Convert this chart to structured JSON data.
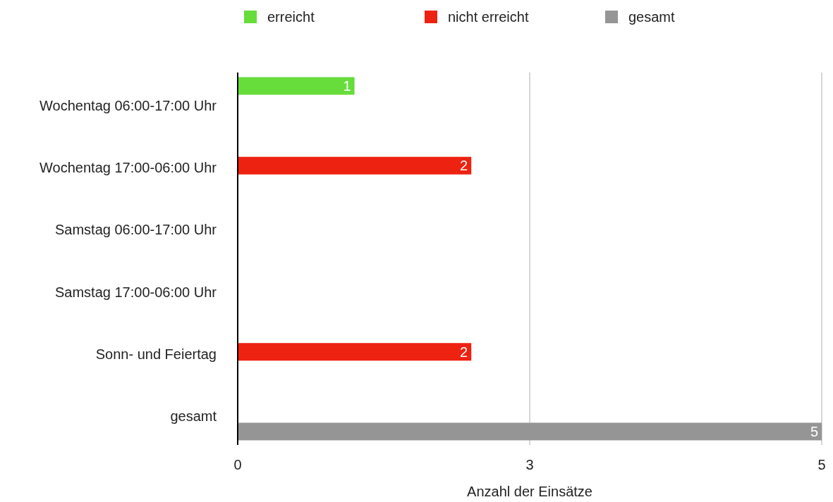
{
  "chart_data": {
    "type": "bar",
    "orientation": "horizontal",
    "xlabel": "Anzahl der Einsätze",
    "categories": [
      "Wochentag 06:00-17:00 Uhr",
      "Wochentag 17:00-06:00 Uhr",
      "Samstag 06:00-17:00 Uhr",
      "Samstag 17:00-06:00 Uhr",
      "Sonn- und Feiertag",
      "gesamt"
    ],
    "series": [
      {
        "name": "erreicht",
        "color": "#66dd3a",
        "values": [
          1,
          null,
          null,
          null,
          null,
          null
        ]
      },
      {
        "name": "nicht erreicht",
        "color": "#ee2211",
        "values": [
          null,
          2,
          null,
          null,
          2,
          null
        ]
      },
      {
        "name": "gesamt",
        "color": "#959595",
        "values": [
          null,
          null,
          null,
          null,
          null,
          5
        ]
      }
    ],
    "xlim": [
      0,
      5
    ],
    "xticks": [
      0,
      {
        "value": 2.5,
        "label": "3"
      },
      5
    ],
    "grid": "x",
    "legend": "top",
    "data_labels": true
  }
}
